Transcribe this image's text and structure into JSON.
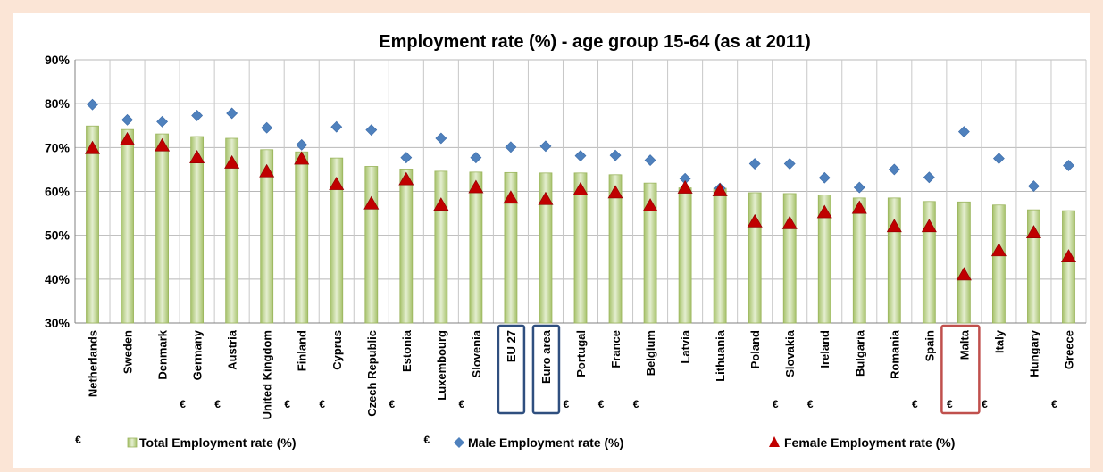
{
  "chart_data": {
    "type": "bar",
    "title": "Employment rate (%) - age group 15-64 (as at 2011)",
    "xlabel": "",
    "ylabel": "",
    "ylim": [
      30,
      90
    ],
    "yticks": [
      "30%",
      "40%",
      "50%",
      "60%",
      "70%",
      "80%",
      "90%"
    ],
    "grid": true,
    "legend_position": "bottom",
    "euro_marker": "€",
    "categories": [
      "Netherlands",
      "Sweden",
      "Denmark",
      "Germany",
      "Austria",
      "United Kingdom",
      "Finland",
      "Cyprus",
      "Czech Republic",
      "Estonia",
      "Luxembourg",
      "Slovenia",
      "EU 27",
      "Euro area",
      "Portugal",
      "France",
      "Belgium",
      "Latvia",
      "Lithuania",
      "Poland",
      "Slovakia",
      "Ireland",
      "Bulgaria",
      "Romania",
      "Spain",
      "Malta",
      "Italy",
      "Hungary",
      "Greece"
    ],
    "euro": [
      true,
      false,
      false,
      true,
      true,
      false,
      true,
      true,
      false,
      true,
      true,
      true,
      false,
      false,
      true,
      true,
      true,
      false,
      false,
      false,
      true,
      true,
      false,
      false,
      true,
      true,
      true,
      false,
      true
    ],
    "boxed": [
      "EU 27",
      "Euro area",
      "Malta"
    ],
    "series": [
      {
        "name": "Total Employment rate (%)",
        "marker": "bar",
        "color": "#c3d69b",
        "values": [
          74.9,
          74.1,
          73.1,
          72.5,
          72.1,
          69.5,
          69.0,
          67.6,
          65.7,
          65.1,
          64.6,
          64.4,
          64.3,
          64.2,
          64.2,
          63.8,
          61.9,
          60.8,
          60.7,
          59.7,
          59.5,
          59.2,
          58.5,
          58.5,
          57.7,
          57.6,
          56.9,
          55.8,
          55.6
        ]
      },
      {
        "name": "Male Employment rate (%)",
        "marker": "diamond",
        "color": "#4f81bd",
        "values": [
          79.8,
          76.3,
          75.9,
          77.3,
          77.8,
          74.5,
          70.6,
          74.7,
          74.0,
          67.7,
          72.1,
          67.7,
          70.1,
          70.3,
          68.1,
          68.2,
          67.1,
          62.9,
          60.7,
          66.3,
          66.3,
          63.1,
          60.9,
          65.0,
          63.2,
          73.6,
          67.5,
          61.2,
          65.9
        ]
      },
      {
        "name": "Female Employment rate (%)",
        "marker": "triangle",
        "color": "#c00000",
        "values": [
          69.8,
          71.8,
          70.4,
          67.7,
          66.5,
          64.5,
          67.4,
          61.6,
          57.2,
          62.7,
          56.9,
          60.9,
          58.5,
          58.2,
          60.4,
          59.7,
          56.7,
          60.8,
          60.2,
          53.1,
          52.7,
          55.2,
          56.2,
          52.0,
          52.0,
          41.0,
          46.5,
          50.6,
          45.1
        ]
      }
    ]
  }
}
